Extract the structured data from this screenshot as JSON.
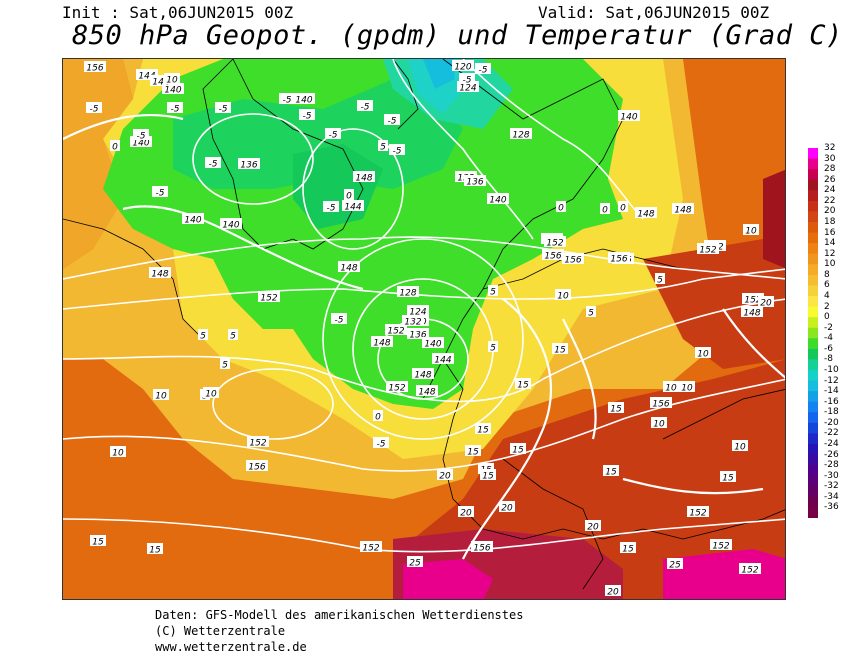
{
  "header": {
    "init": "Init : Sat,06JUN2015 00Z",
    "valid": "Valid: Sat,06JUN2015 00Z",
    "title": "850 hPa Geopot. (gpdm) und Temperatur (Grad C)"
  },
  "legend": {
    "labels": [
      "32",
      "30",
      "28",
      "26",
      "24",
      "22",
      "20",
      "18",
      "16",
      "14",
      "12",
      "10",
      "8",
      "6",
      "4",
      "2",
      "0",
      "-2",
      "-4",
      "-6",
      "-8",
      "-10",
      "-12",
      "-14",
      "-16",
      "-18",
      "-20",
      "-22",
      "-24",
      "-26",
      "-28",
      "-30",
      "-32",
      "-34",
      "-36"
    ],
    "colors": [
      "#ff00ff",
      "#e8008c",
      "#c80050",
      "#a0141e",
      "#b41e1e",
      "#c83214",
      "#d24614",
      "#dc5a0a",
      "#e66e0a",
      "#f08214",
      "#f0961e",
      "#f5aa28",
      "#f5be32",
      "#f5d23c",
      "#fae646",
      "#fafa32",
      "#c8f01e",
      "#8ce61e",
      "#3cdc28",
      "#14c85a",
      "#14d296",
      "#14d2c8",
      "#14bedc",
      "#14a0e6",
      "#1482f0",
      "#1464f0",
      "#1446dc",
      "#1e28c8",
      "#2814b4",
      "#3c0aa0",
      "#50008c",
      "#5a0078",
      "#640064",
      "#6e0050",
      "#780046"
    ]
  },
  "map": {
    "geopotential_labels": [
      "156",
      "144",
      "140",
      "140",
      "136",
      "140",
      "140",
      "140",
      "144",
      "148",
      "152",
      "148",
      "152",
      "148",
      "152",
      "156",
      "152",
      "156",
      "152",
      "156",
      "152",
      "156",
      "144",
      "148",
      "148",
      "140",
      "136",
      "132",
      "128",
      "124",
      "140",
      "144",
      "148",
      "152",
      "128",
      "132",
      "136",
      "140",
      "120",
      "124",
      "148",
      "152",
      "156",
      "152",
      "156",
      "152",
      "152",
      "148",
      "152",
      "156",
      "140",
      "148",
      "152"
    ],
    "temperature_labels": [
      "10",
      "-5",
      "-5",
      "-5",
      "-5",
      "0",
      "-5",
      "-5",
      "-5",
      "-5",
      "-5",
      "-5",
      "0",
      "-5",
      "-5",
      "-5",
      "-5",
      "-5",
      "0",
      "0",
      "-5",
      "-5",
      "5",
      "5",
      "5",
      "5",
      "10",
      "10",
      "10",
      "10",
      "5",
      "0",
      "5",
      "0",
      "5",
      "10",
      "15",
      "15",
      "15",
      "15",
      "15",
      "15",
      "15",
      "10",
      "10",
      "10",
      "10",
      "15",
      "15",
      "15",
      "20",
      "20",
      "20",
      "20",
      "25",
      "25",
      "20",
      "15",
      "10",
      "15",
      "15",
      "10",
      "20",
      "5",
      "5"
    ]
  },
  "footer": {
    "line1": "Daten: GFS-Modell des amerikanischen Wetterdienstes",
    "line2": "(C) Wetterzentrale",
    "line3": "www.wetterzentrale.de"
  }
}
